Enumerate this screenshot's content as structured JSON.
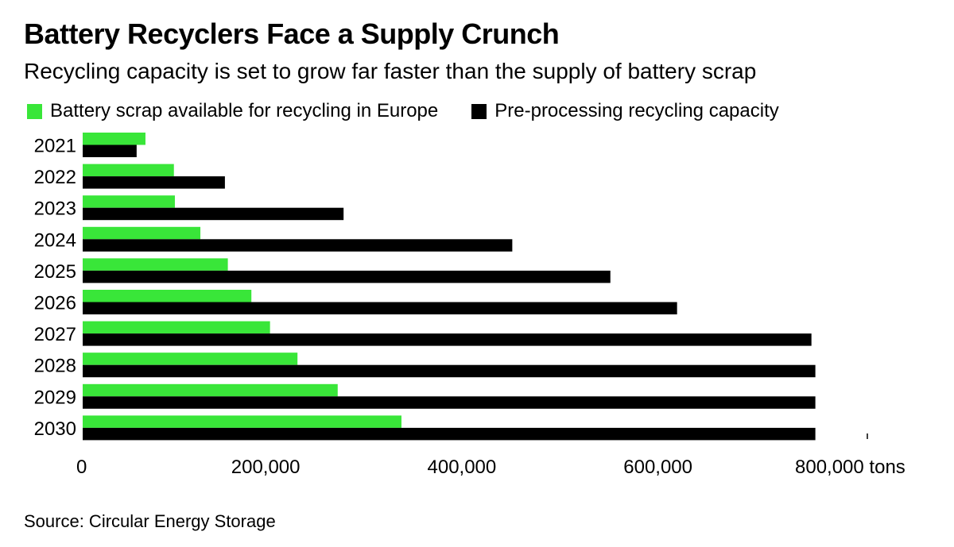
{
  "title": "Battery Recyclers Face a Supply Crunch",
  "subtitle": "Recycling capacity is set to grow far faster than the supply of battery scrap",
  "source": "Source: Circular Energy Storage",
  "colors": {
    "scrap": "#39e639",
    "capacity": "#000000",
    "background": "#ffffff"
  },
  "chart_data": {
    "type": "bar",
    "orientation": "horizontal",
    "categories": [
      "2021",
      "2022",
      "2023",
      "2024",
      "2025",
      "2026",
      "2027",
      "2028",
      "2029",
      "2030"
    ],
    "series": [
      {
        "name": "Battery scrap available for recycling in Europe",
        "color": "#39e639",
        "values": [
          64000,
          93000,
          94000,
          120000,
          148000,
          172000,
          191000,
          219000,
          260000,
          325000
        ]
      },
      {
        "name": "Pre-processing recycling capacity",
        "color": "#000000",
        "values": [
          55000,
          145000,
          266000,
          438000,
          538000,
          606000,
          743000,
          747000,
          747000,
          747000
        ]
      }
    ],
    "x_ticks": [
      {
        "value": 0,
        "label": "0"
      },
      {
        "value": 200000,
        "label": "200,000"
      },
      {
        "value": 400000,
        "label": "400,000"
      },
      {
        "value": 600000,
        "label": "600,000"
      },
      {
        "value": 800000,
        "label": "800,000 tons"
      }
    ],
    "xlim": [
      0,
      800000
    ],
    "grid": false,
    "legend_position": "top-left"
  }
}
